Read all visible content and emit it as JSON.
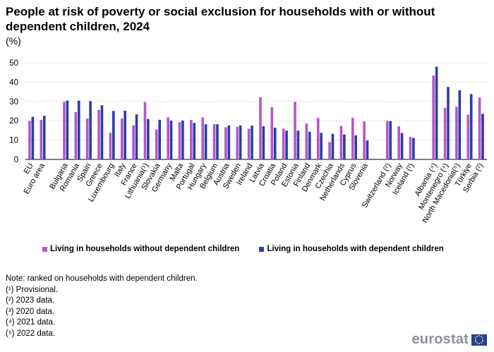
{
  "header": {
    "title": "People at risk of poverty or social exclusion for households with or without dependent children, 2024",
    "unit": "(%)"
  },
  "legend": {
    "without_label": "Living in households without dependent children",
    "with_label": "Living in households with dependent children"
  },
  "notes": [
    "Note: ranked on households with dependent children.",
    "(¹) Provisional.",
    "(²) 2023 data.",
    "(³) 2020 data.",
    "(⁴) 2021 data.",
    "(⁵) 2022 data."
  ],
  "footer": {
    "brand": "eurostat"
  },
  "colors": {
    "without": "#b656c8",
    "with": "#2a3ea6",
    "grid": "#d9d9d9",
    "brand_grey": "#8a8f98",
    "flag": "#1f3fa7"
  },
  "chart_data": {
    "type": "bar",
    "title": "People at risk of poverty or social exclusion for households with or without dependent children, 2024",
    "xlabel": "",
    "ylabel": "%",
    "ylim": [
      0,
      50
    ],
    "yticks": [
      0,
      10,
      20,
      30,
      40,
      50
    ],
    "grid": true,
    "legend_position": "bottom",
    "categories": [
      "EU",
      "Euro area",
      "",
      "Bulgaria",
      "Romania",
      "Spain",
      "Greece",
      "Luxembourg",
      "Italy",
      "France",
      "Lithuania(¹)",
      "Slovakia",
      "Germany",
      "Malta",
      "Portugal",
      "Hungary",
      "Belgium",
      "Austria",
      "Sweden",
      "Ireland",
      "Latvia",
      "Croatia",
      "Poland",
      "Estonia",
      "Finland",
      "Denmark",
      "Czechia",
      "Netherlands",
      "Cyprus",
      "Slovenia",
      "",
      "Switzerland (²)",
      "Norway",
      "Iceland (²)",
      "",
      "Albania (⁴)",
      "Montenegro (⁴)",
      "North Macedonia(⁵)",
      "Türkiye",
      "Serbia (²)"
    ],
    "series": [
      {
        "name": "Living in households without dependent children",
        "values": [
          20.0,
          20.5,
          null,
          29.8,
          24.5,
          21.2,
          25.6,
          13.8,
          21.2,
          17.7,
          29.7,
          15.5,
          21.8,
          19.3,
          20.4,
          21.7,
          18.2,
          16.6,
          16.9,
          15.9,
          32.2,
          27.0,
          15.9,
          29.8,
          18.6,
          21.5,
          9.0,
          17.4,
          21.5,
          19.6,
          null,
          20.0,
          17.1,
          11.7,
          null,
          43.4,
          26.7,
          27.2,
          23.2,
          32.0
        ]
      },
      {
        "name": "Living in households with dependent children",
        "values": [
          22.0,
          22.6,
          null,
          30.5,
          30.4,
          30.2,
          28.0,
          25.1,
          25.2,
          23.3,
          20.9,
          20.5,
          20.1,
          20.1,
          18.9,
          18.2,
          18.2,
          17.6,
          17.6,
          17.5,
          17.2,
          16.4,
          14.9,
          14.9,
          14.3,
          13.7,
          13.3,
          12.9,
          12.5,
          9.8,
          null,
          19.8,
          13.7,
          11.1,
          null,
          48.0,
          37.5,
          35.8,
          33.8,
          23.6
        ]
      }
    ]
  }
}
